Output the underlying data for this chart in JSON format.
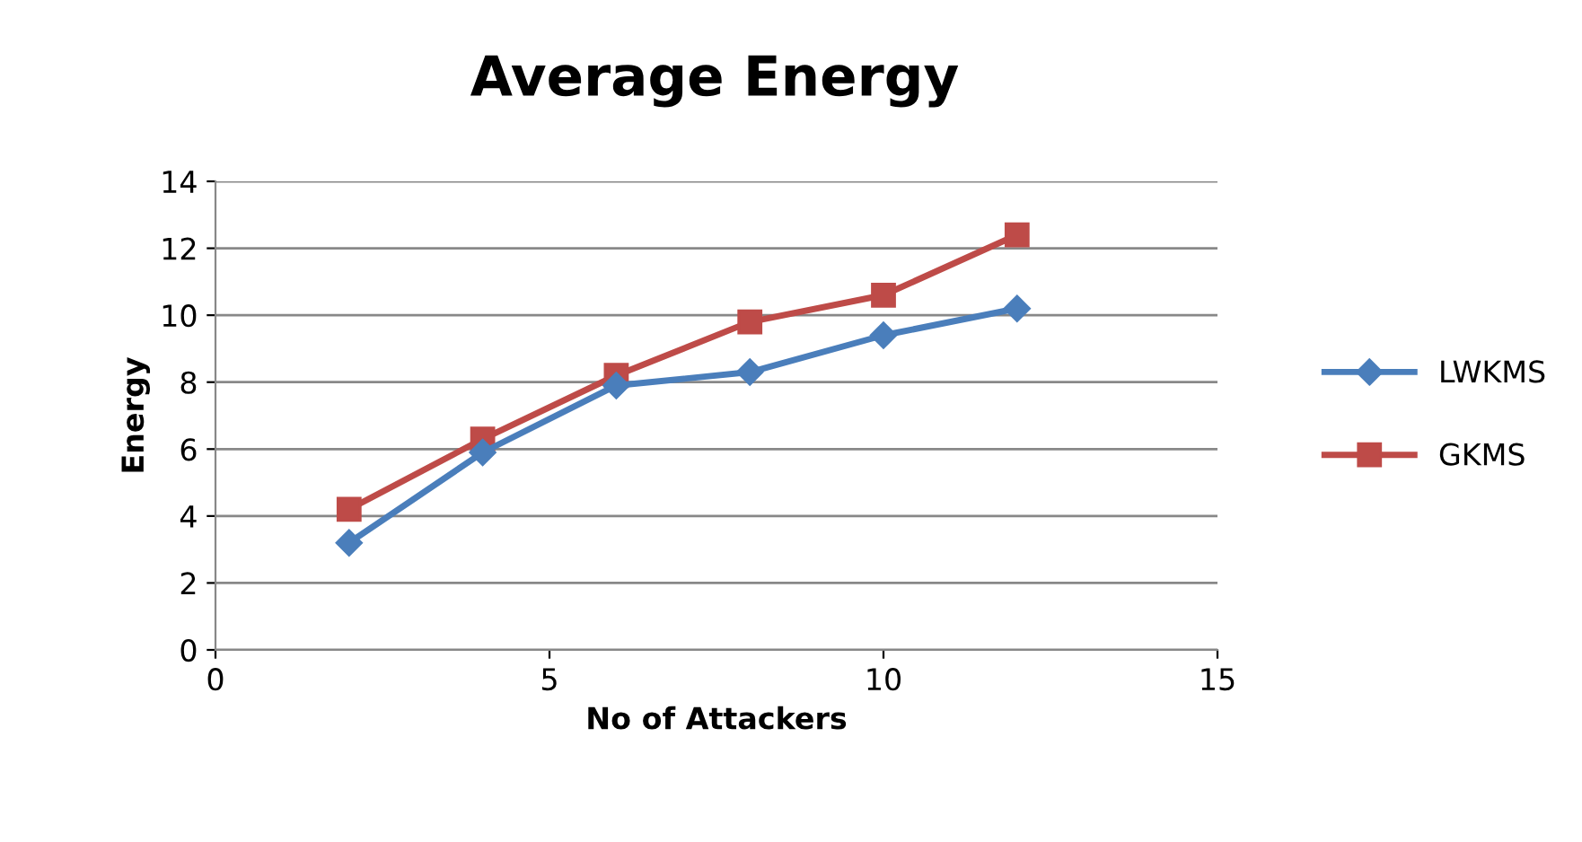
{
  "chart_data": {
    "type": "line",
    "title": "Average Energy",
    "xlabel": "No of Attackers",
    "ylabel": "Energy",
    "x": [
      2,
      4,
      6,
      8,
      10,
      12
    ],
    "series": [
      {
        "name": "LWKMS",
        "color": "#4a7ebb",
        "marker": "diamond",
        "values": [
          3.2,
          5.9,
          7.9,
          8.3,
          9.4,
          10.2
        ]
      },
      {
        "name": "GKMS",
        "color": "#be4b48",
        "marker": "square",
        "values": [
          4.2,
          6.3,
          8.2,
          9.8,
          10.6,
          12.4
        ]
      }
    ],
    "xlim": [
      0,
      15
    ],
    "xticks": [
      0,
      5,
      10,
      15
    ],
    "ylim": [
      0,
      14
    ],
    "yticks": [
      0,
      2,
      4,
      6,
      8,
      10,
      12,
      14
    ],
    "grid": "y",
    "legend": "right",
    "line_style": "solid"
  }
}
